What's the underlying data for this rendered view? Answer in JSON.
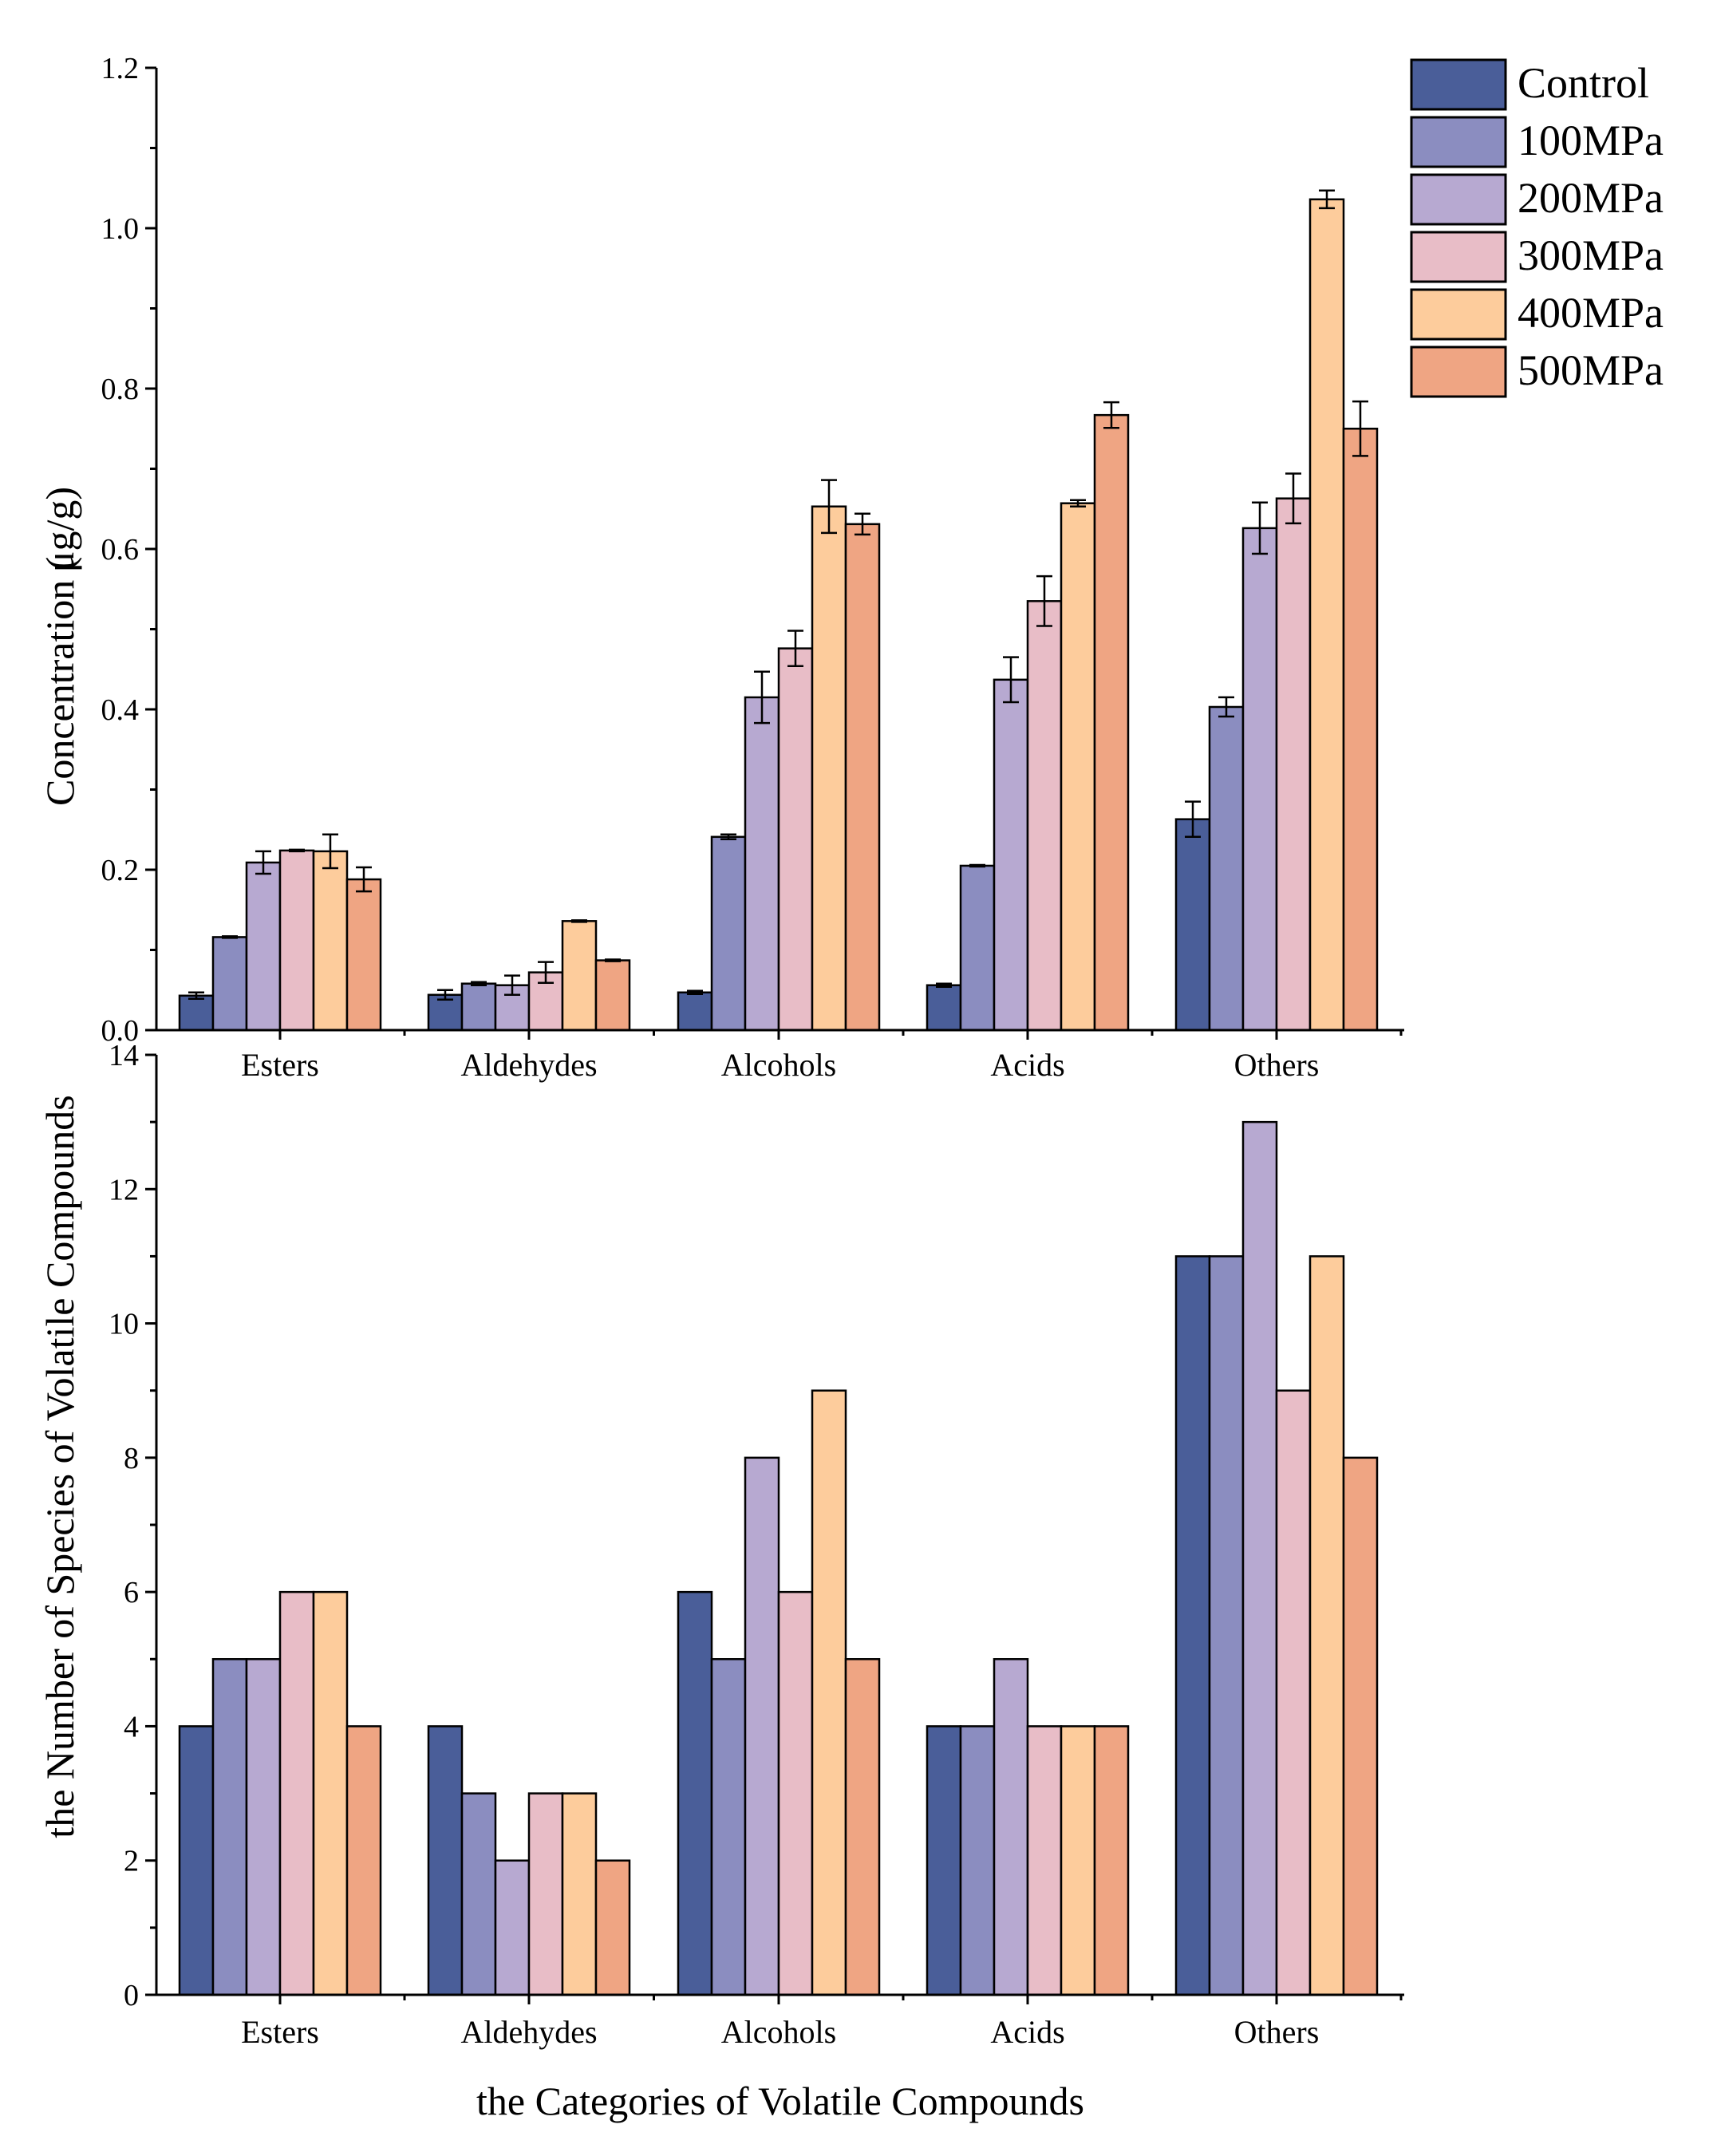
{
  "legend": {
    "items": [
      {
        "label": "Control",
        "color": "#4a5e99"
      },
      {
        "label": "100MPa",
        "color": "#8b8dc0"
      },
      {
        "label": "200MPa",
        "color": "#b7a9d1"
      },
      {
        "label": "300MPa",
        "color": "#e8bdc7"
      },
      {
        "label": "400MPa",
        "color": "#fdcc9c"
      },
      {
        "label": "500MPa",
        "color": "#efa583"
      }
    ]
  },
  "chart_data": [
    {
      "type": "bar",
      "title": "",
      "xlabel": "",
      "ylabel_parts": [
        "Concentration (",
        "μg/g)"
      ],
      "ylim": [
        0,
        1.2
      ],
      "yticks": [
        "0.0",
        "0.2",
        "0.4",
        "0.6",
        "0.8",
        "1.0",
        "1.2"
      ],
      "categories": [
        "Esters",
        "Aldehydes",
        "Alcohols",
        "Acids",
        "Others"
      ],
      "series": [
        {
          "name": "Control",
          "values": [
            0.043,
            0.044,
            0.047,
            0.056,
            0.263
          ],
          "errors": [
            0.004,
            0.006,
            0.002,
            0.002,
            0.022
          ]
        },
        {
          "name": "100MPa",
          "values": [
            0.116,
            0.058,
            0.241,
            0.205,
            0.403
          ],
          "errors": [
            0.001,
            0.002,
            0.003,
            0.001,
            0.012
          ]
        },
        {
          "name": "200MPa",
          "values": [
            0.209,
            0.056,
            0.415,
            0.437,
            0.626
          ],
          "errors": [
            0.014,
            0.012,
            0.032,
            0.028,
            0.032
          ]
        },
        {
          "name": "300MPa",
          "values": [
            0.224,
            0.072,
            0.476,
            0.535,
            0.663
          ],
          "errors": [
            0.001,
            0.013,
            0.022,
            0.031,
            0.031
          ]
        },
        {
          "name": "400MPa",
          "values": [
            0.223,
            0.136,
            0.653,
            0.657,
            1.036
          ],
          "errors": [
            0.021,
            0.001,
            0.033,
            0.004,
            0.011
          ]
        },
        {
          "name": "500MPa",
          "values": [
            0.188,
            0.087,
            0.631,
            0.767,
            0.75
          ],
          "errors": [
            0.015,
            0.001,
            0.013,
            0.016,
            0.034
          ]
        }
      ]
    },
    {
      "type": "bar",
      "title": "",
      "xlabel": "the Categories of Volatile Compounds",
      "ylabel": "the Number of Species of Volatile Compounds",
      "ylim": [
        0,
        14
      ],
      "yticks": [
        "0",
        "2",
        "4",
        "6",
        "8",
        "10",
        "12",
        "14"
      ],
      "categories": [
        "Esters",
        "Aldehydes",
        "Alcohols",
        "Acids",
        "Others"
      ],
      "series": [
        {
          "name": "Control",
          "values": [
            4,
            4,
            6,
            4,
            11
          ]
        },
        {
          "name": "100MPa",
          "values": [
            5,
            3,
            5,
            4,
            11
          ]
        },
        {
          "name": "200MPa",
          "values": [
            5,
            2,
            8,
            5,
            13
          ]
        },
        {
          "name": "300MPa",
          "values": [
            6,
            3,
            6,
            4,
            9
          ]
        },
        {
          "name": "400MPa",
          "values": [
            6,
            3,
            9,
            4,
            11
          ]
        },
        {
          "name": "500MPa",
          "values": [
            4,
            2,
            5,
            4,
            8
          ]
        }
      ]
    }
  ]
}
